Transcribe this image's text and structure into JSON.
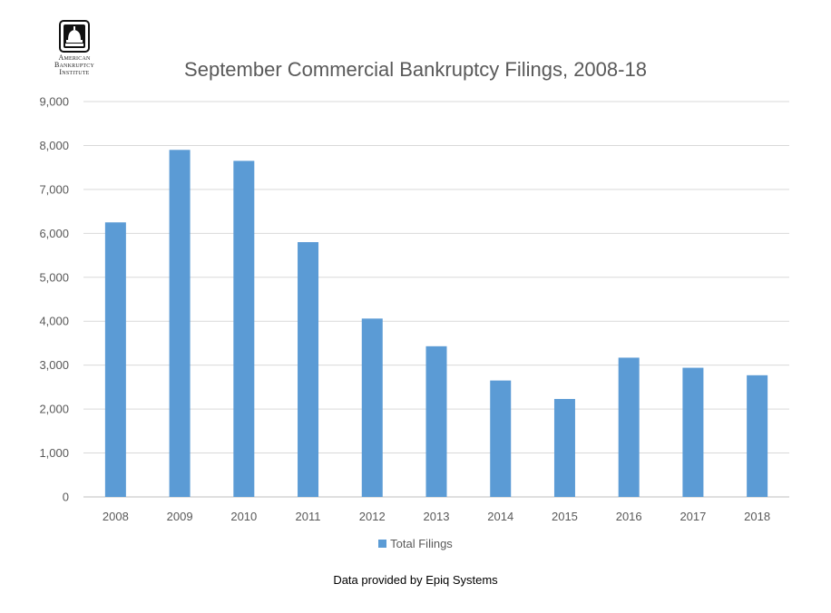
{
  "logo": {
    "org_lines": [
      "American",
      "Bankruptcy",
      "Institute"
    ]
  },
  "footnote": "Data provided by Epiq Systems",
  "colors": {
    "bar": "#5b9bd5",
    "grid": "#d9d9d9",
    "text": "#595959"
  },
  "chart_data": {
    "type": "bar",
    "title": "September Commercial Bankruptcy Filings, 2008-18",
    "xlabel": "",
    "ylabel": "",
    "categories": [
      "2008",
      "2009",
      "2010",
      "2011",
      "2012",
      "2013",
      "2014",
      "2015",
      "2016",
      "2017",
      "2018"
    ],
    "series": [
      {
        "name": "Total Filings",
        "values": [
          6250,
          7900,
          7650,
          5800,
          4060,
          3430,
          2650,
          2230,
          3170,
          2940,
          2770
        ]
      }
    ],
    "ylim": [
      0,
      9000
    ],
    "yticks": [
      "0",
      "1,000",
      "2,000",
      "3,000",
      "4,000",
      "5,000",
      "6,000",
      "7,000",
      "8,000",
      "9,000"
    ],
    "grid": true,
    "legend_position": "bottom"
  }
}
